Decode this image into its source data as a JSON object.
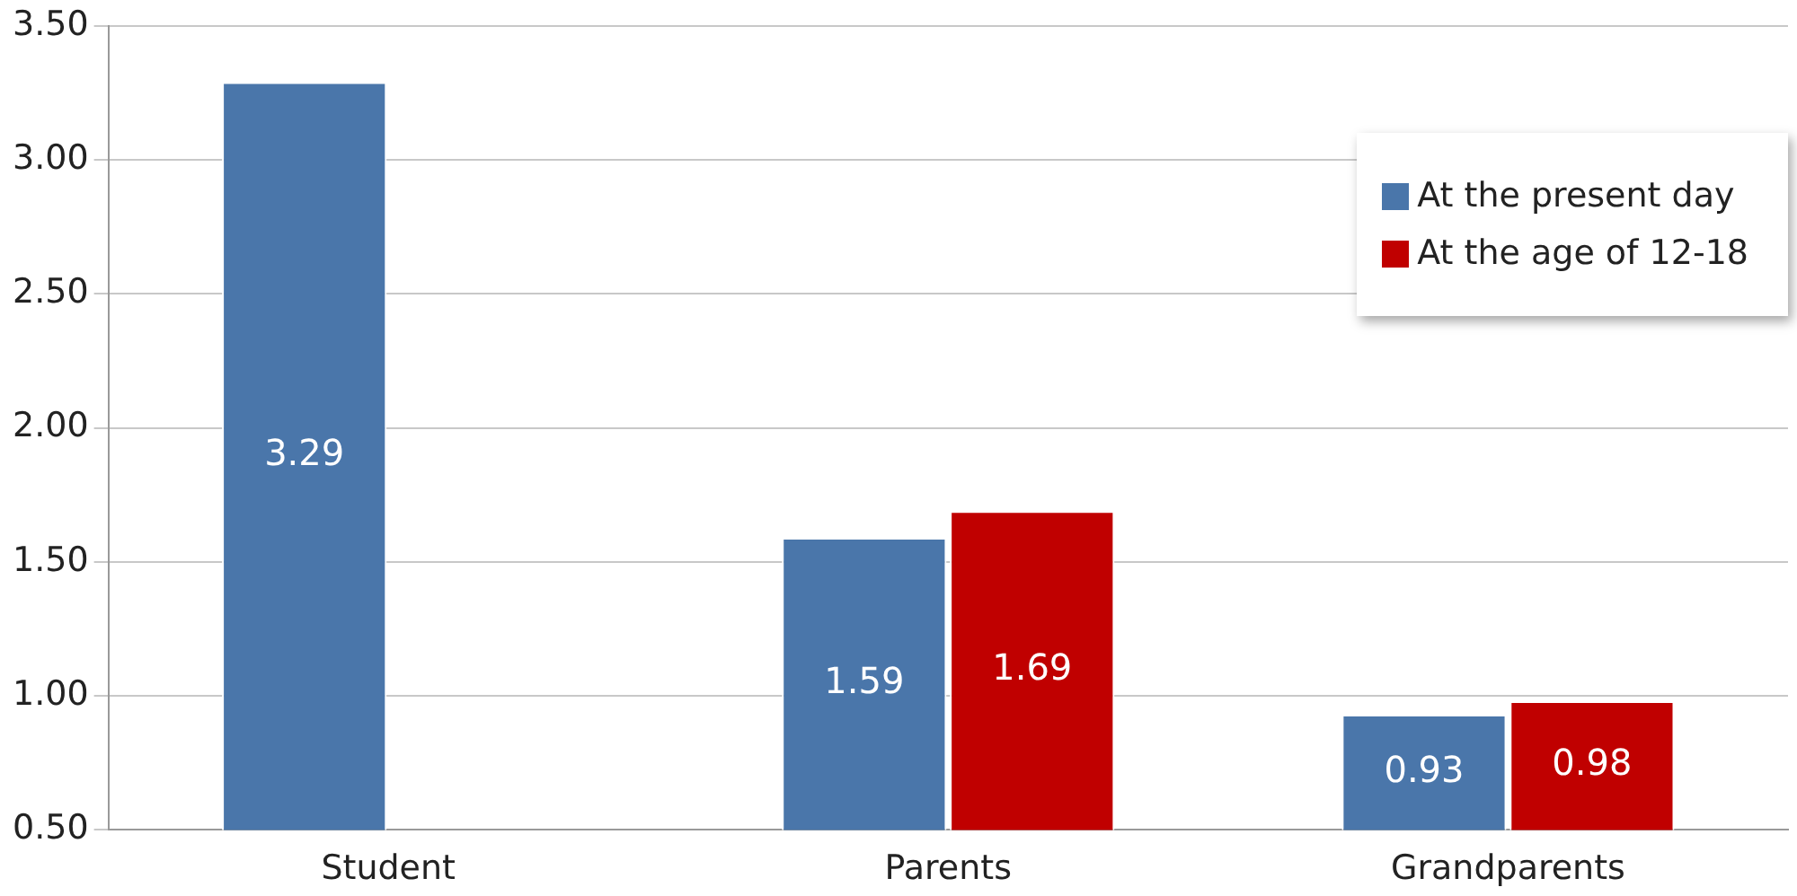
{
  "chart_data": {
    "type": "bar",
    "categories": [
      "Student",
      "Parents",
      "Grandparents"
    ],
    "series": [
      {
        "name": "At the present day",
        "color": "#4a76aa",
        "values": [
          3.29,
          1.59,
          0.93
        ]
      },
      {
        "name": "At the age of 12-18",
        "color": "#c00000",
        "values": [
          null,
          1.69,
          0.98
        ]
      }
    ],
    "ylim": [
      0.5,
      3.5
    ],
    "yticks": [
      {
        "value": 0.5,
        "label": "0.50"
      },
      {
        "value": 1,
        "label": "1.00"
      },
      {
        "value": 1.5,
        "label": "1.50"
      },
      {
        "value": 2,
        "label": "2.00"
      },
      {
        "value": 2.5,
        "label": "2.50"
      },
      {
        "value": 3,
        "label": "3.00"
      },
      {
        "value": 3.5,
        "label": "3.50"
      }
    ],
    "grid": "y",
    "legend": "top right",
    "data_labels": true
  }
}
